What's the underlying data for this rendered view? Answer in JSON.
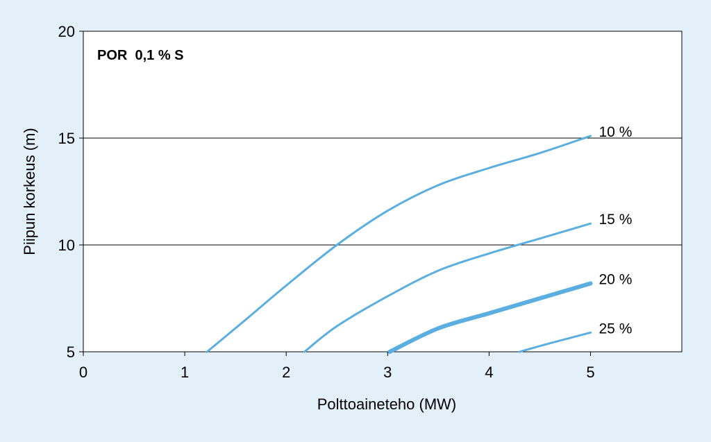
{
  "chart_data": {
    "type": "line",
    "title": "POR  0,1 % S",
    "xlabel": "Polttoaineteho (MW)",
    "ylabel": "Piipun korkeus (m)",
    "xlim": [
      0,
      5.9
    ],
    "ylim": [
      5,
      20
    ],
    "x_ticks": [
      "0",
      "1",
      "2",
      "3",
      "4",
      "5"
    ],
    "y_ticks": [
      "5",
      "10",
      "15",
      "20"
    ],
    "grid": "horizontal",
    "series": [
      {
        "name": "10 %",
        "color": "#5aaee0",
        "emphasis": false,
        "x": [
          1.22,
          1.6,
          2.0,
          2.5,
          3.0,
          3.5,
          4.0,
          4.5,
          5.0
        ],
        "y": [
          5.0,
          6.5,
          8.1,
          10.0,
          11.6,
          12.8,
          13.6,
          14.3,
          15.1
        ]
      },
      {
        "name": "15 %",
        "color": "#5aaee0",
        "emphasis": false,
        "x": [
          2.18,
          2.5,
          3.0,
          3.5,
          4.0,
          4.5,
          5.0
        ],
        "y": [
          5.0,
          6.2,
          7.6,
          8.8,
          9.6,
          10.3,
          11.0
        ]
      },
      {
        "name": "20 %",
        "color": "#5aaee0",
        "emphasis": true,
        "x": [
          3.02,
          3.5,
          4.0,
          4.5,
          5.0
        ],
        "y": [
          5.0,
          6.1,
          6.8,
          7.5,
          8.2
        ]
      },
      {
        "name": "25 %",
        "color": "#5aaee0",
        "emphasis": false,
        "x": [
          4.3,
          4.6,
          5.0
        ],
        "y": [
          5.0,
          5.4,
          5.9
        ]
      }
    ]
  }
}
